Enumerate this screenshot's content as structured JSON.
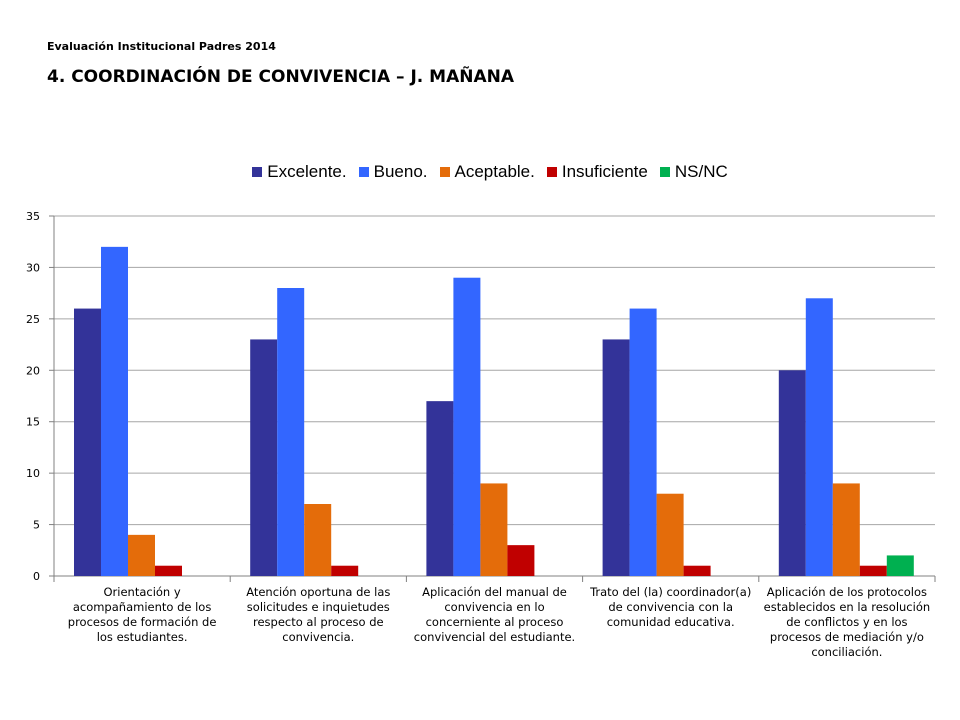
{
  "header": {
    "subtitle": "Evaluación Institucional Padres 2014",
    "title": "4. COORDINACIÓN DE CONVIVENCIA – J. MAÑANA"
  },
  "chart_data": {
    "type": "bar",
    "title": "",
    "xlabel": "",
    "ylabel": "",
    "ylim": [
      0,
      35
    ],
    "yticks": [
      0,
      5,
      10,
      15,
      20,
      25,
      30,
      35
    ],
    "grid": true,
    "legend_position": "top",
    "categories": [
      "Orientación y acompañamiento de los procesos de formación de los estudiantes.",
      "Atención oportuna de las solicitudes e inquietudes respecto al proceso de convivencia.",
      "Aplicación del manual de convivencia en lo concerniente al proceso convivencial del estudiante.",
      "Trato del (la) coordinador(a) de convivencia con la comunidad educativa.",
      "Aplicación de los protocolos establecidos en la resolución de conflictos y en los procesos de mediación y/o conciliación."
    ],
    "series": [
      {
        "name": "Excelente.",
        "color": "#333399",
        "values": [
          26,
          23,
          17,
          23,
          20
        ]
      },
      {
        "name": "Bueno.",
        "color": "#3366FF",
        "values": [
          32,
          28,
          29,
          26,
          27
        ]
      },
      {
        "name": "Aceptable.",
        "color": "#E46C0A",
        "values": [
          4,
          7,
          9,
          8,
          9
        ]
      },
      {
        "name": "Insuficiente",
        "color": "#C00000",
        "values": [
          1,
          1,
          3,
          1,
          1
        ]
      },
      {
        "name": "NS/NC",
        "color": "#00B050",
        "values": [
          0,
          0,
          0,
          0,
          2
        ]
      }
    ]
  }
}
